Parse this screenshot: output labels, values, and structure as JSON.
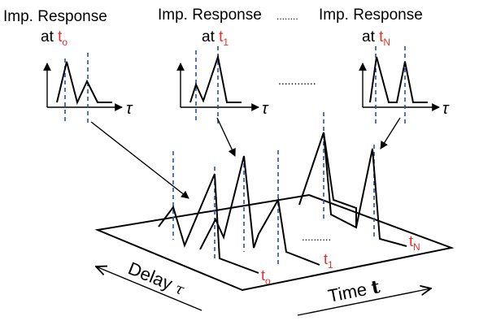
{
  "panels": [
    {
      "title": "Imp. Response",
      "at": "at",
      "t_base": "t",
      "t_sub": "o",
      "axis": "τ"
    },
    {
      "title": "Imp. Response",
      "at": "at",
      "t_base": "t",
      "t_sub": "1",
      "axis": "τ"
    },
    {
      "title": "Imp. Response",
      "at": "at",
      "t_base": "t",
      "t_sub": "N",
      "axis": "τ"
    }
  ],
  "title_ellipsis": "........",
  "panel_ellipsis": "............",
  "plane_ellipsis": "..........",
  "trace_labels": [
    {
      "base": "t",
      "sub": "o"
    },
    {
      "base": "t",
      "sub": "1"
    },
    {
      "base": "t",
      "sub": "N"
    }
  ],
  "axes": {
    "delay_word": "Delay",
    "delay_symbol": "τ",
    "time_word": "Time",
    "time_symbol": "t"
  },
  "colors": {
    "text": "#000000",
    "accent_red": "#e8302a",
    "dash_blue": "#2a4fb0"
  }
}
